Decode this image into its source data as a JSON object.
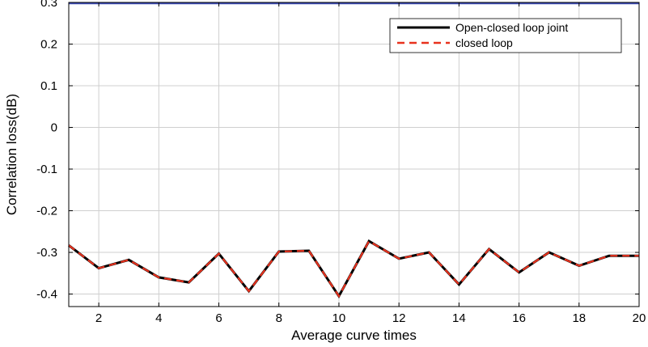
{
  "chart_data": {
    "type": "line",
    "xlabel": "Average curve times",
    "ylabel": "Correlation loss(dB)",
    "xlim": [
      1,
      20
    ],
    "ylim": [
      -0.43,
      0.3
    ],
    "x_ticks": [
      2,
      4,
      6,
      8,
      10,
      12,
      14,
      16,
      18,
      20
    ],
    "y_ticks": [
      0.3,
      0.2,
      0.1,
      0,
      -0.1,
      -0.2,
      -0.3,
      -0.4
    ],
    "y_tick_labels": [
      "0.3",
      "0.2",
      "0.1",
      "0",
      "-0.1",
      "-0.2",
      "-0.3",
      "-0.4"
    ],
    "x_tick_labels": [
      "2",
      "4",
      "6",
      "8",
      "10",
      "12",
      "14",
      "16",
      "18",
      "20"
    ],
    "grid": true,
    "legend_position": "top-right",
    "x": [
      1,
      2,
      3,
      4,
      5,
      6,
      7,
      8,
      9,
      10,
      11,
      12,
      13,
      14,
      15,
      16,
      17,
      18,
      19,
      20
    ],
    "series": [
      {
        "name": "Open-closed loop joint",
        "color": "#000000",
        "style": "solid",
        "values": [
          -0.283,
          -0.338,
          -0.318,
          -0.36,
          -0.372,
          -0.303,
          -0.393,
          -0.298,
          -0.296,
          -0.405,
          -0.273,
          -0.315,
          -0.3,
          -0.377,
          -0.292,
          -0.348,
          -0.3,
          -0.332,
          -0.308,
          -0.308
        ]
      },
      {
        "name": "closed loop",
        "color": "#e8321e",
        "style": "dashed",
        "values": [
          -0.283,
          -0.338,
          -0.318,
          -0.36,
          -0.372,
          -0.303,
          -0.393,
          -0.298,
          -0.296,
          -0.405,
          -0.273,
          -0.315,
          -0.3,
          -0.377,
          -0.292,
          -0.348,
          -0.3,
          -0.332,
          -0.308,
          -0.308
        ]
      }
    ],
    "reference_line": {
      "y": 0.3,
      "color": "#3b4ab0"
    }
  }
}
